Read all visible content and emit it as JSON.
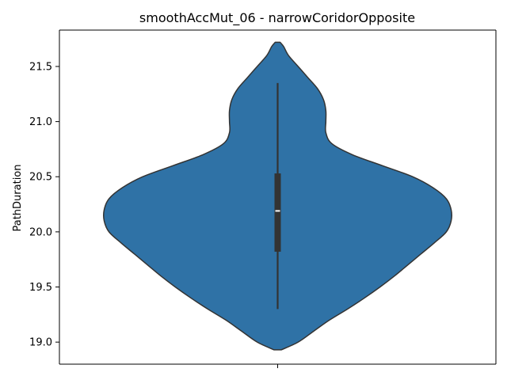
{
  "chart_data": {
    "type": "violin",
    "title": "smoothAccMut_06 - narrowCoridorOpposite",
    "xlabel": "",
    "ylabel": "PathDuration",
    "ylim": [
      18.8,
      21.83
    ],
    "yticks": [
      19.0,
      19.5,
      20.0,
      20.5,
      21.0,
      21.5
    ],
    "ytick_labels": [
      "19.0",
      "19.5",
      "20.0",
      "20.5",
      "21.0",
      "21.5"
    ],
    "xticks": [
      ""
    ],
    "grid": false,
    "colors": {
      "violin_fill": "#2f72a6",
      "violin_edge": "#333333",
      "box": "#333333",
      "median": "#ffffff",
      "axis": "#000000"
    },
    "violin": {
      "min": 19.3,
      "q1": 19.82,
      "median": 20.19,
      "q3": 20.53,
      "max": 21.35,
      "kde_extent": [
        18.93,
        21.72
      ],
      "density_profile": [
        [
          18.93,
          0.03
        ],
        [
          19.0,
          0.17
        ],
        [
          19.1,
          0.3
        ],
        [
          19.2,
          0.43
        ],
        [
          19.3,
          0.58
        ],
        [
          19.4,
          0.72
        ],
        [
          19.5,
          0.85
        ],
        [
          19.6,
          0.97
        ],
        [
          19.7,
          1.08
        ],
        [
          19.8,
          1.19
        ],
        [
          19.9,
          1.3
        ],
        [
          20.0,
          1.4
        ],
        [
          20.1,
          1.44
        ],
        [
          20.2,
          1.44
        ],
        [
          20.3,
          1.4
        ],
        [
          20.4,
          1.29
        ],
        [
          20.5,
          1.12
        ],
        [
          20.6,
          0.87
        ],
        [
          20.7,
          0.62
        ],
        [
          20.8,
          0.45
        ],
        [
          20.9,
          0.4
        ],
        [
          21.0,
          0.4
        ],
        [
          21.1,
          0.4
        ],
        [
          21.2,
          0.38
        ],
        [
          21.3,
          0.33
        ],
        [
          21.4,
          0.25
        ],
        [
          21.5,
          0.17
        ],
        [
          21.6,
          0.09
        ],
        [
          21.68,
          0.05
        ],
        [
          21.72,
          0.02
        ]
      ]
    }
  }
}
